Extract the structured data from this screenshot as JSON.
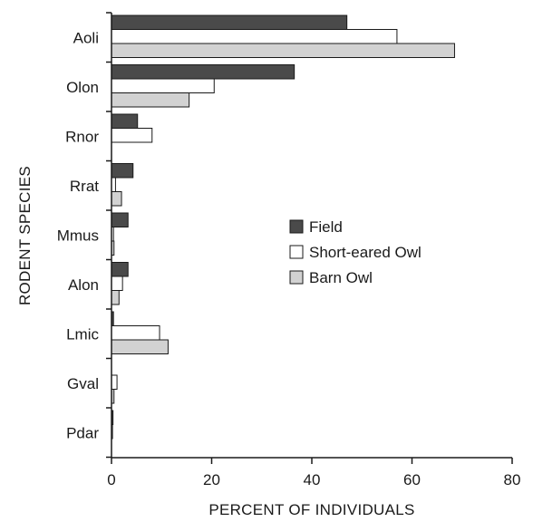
{
  "chart_data": {
    "type": "bar",
    "orientation": "horizontal",
    "title": "",
    "xlabel": "PERCENT OF INDIVIDUALS",
    "ylabel": "RODENT SPECIES",
    "xlim": [
      0,
      80
    ],
    "xticks": [
      0,
      20,
      40,
      60,
      80
    ],
    "grid": false,
    "legend_position": "center-right",
    "categories": [
      "Aoli",
      "Olon",
      "Rnor",
      "Rrat",
      "Mmus",
      "Alon",
      "Lmic",
      "Gval",
      "Pdar"
    ],
    "series": [
      {
        "name": "Field",
        "color": "#4a4a4a",
        "values": [
          47,
          36.5,
          5.2,
          4.3,
          3.3,
          3.3,
          0.4,
          0,
          0.3
        ]
      },
      {
        "name": "Short-eared Owl",
        "color": "#ffffff",
        "values": [
          57,
          20.5,
          8.1,
          0.8,
          0.4,
          2.2,
          9.6,
          1.1,
          0.2
        ]
      },
      {
        "name": "Barn Owl",
        "color": "#d2d2d2",
        "values": [
          68.5,
          15.5,
          0,
          2.0,
          0.5,
          1.5,
          11.3,
          0.5,
          0
        ]
      }
    ]
  }
}
